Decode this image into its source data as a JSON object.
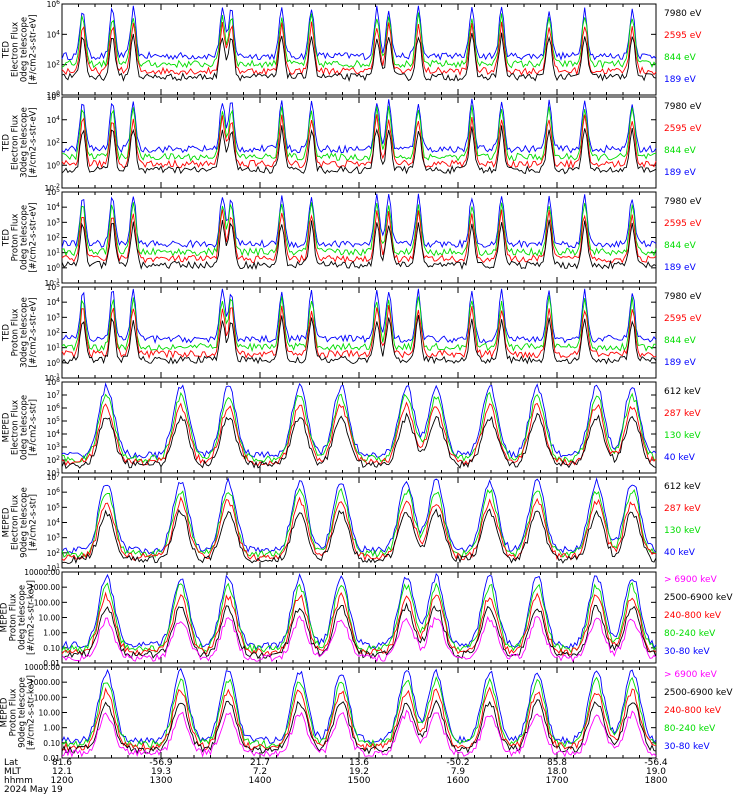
{
  "chart_data": [
    {
      "type": "line",
      "log": true,
      "ylim": [
        1,
        1000000
      ],
      "ylabel": [
        "TED",
        "Electron Flux",
        "0deg telescope",
        "[#/cm2-s-str-eV]"
      ],
      "tick_labels": [
        "10^0",
        "10^2",
        "10^4",
        "10^6"
      ],
      "legend": [
        {
          "label": "7980 eV",
          "color": "#000000"
        },
        {
          "label": "2595 eV",
          "color": "#ff0000"
        },
        {
          "label": "844 eV",
          "color": "#00dd00"
        },
        {
          "label": "189 eV",
          "color": "#0000ff"
        }
      ]
    },
    {
      "type": "line",
      "log": true,
      "ylim": [
        0.01,
        1000000
      ],
      "ylabel": [
        "TED",
        "Electron Flux",
        "30deg telescope",
        "[#/cm2-s-str-eV]"
      ],
      "tick_labels": [
        "10^-2",
        "10^0",
        "10^2",
        "10^4",
        "10^6"
      ],
      "legend": [
        {
          "label": "7980 eV",
          "color": "#000000"
        },
        {
          "label": "2595 eV",
          "color": "#ff0000"
        },
        {
          "label": "844 eV",
          "color": "#00dd00"
        },
        {
          "label": "189 eV",
          "color": "#0000ff"
        }
      ]
    },
    {
      "type": "line",
      "log": true,
      "ylim": [
        0.1,
        100000
      ],
      "ylabel": [
        "TED",
        "Proton Flux",
        "0deg telescope",
        "[#/cm2-s-str-eV]"
      ],
      "tick_labels": [
        "10^-1",
        "10^0",
        "10^1",
        "10^2",
        "10^3",
        "10^4",
        "10^5"
      ],
      "legend": [
        {
          "label": "7980 eV",
          "color": "#000000"
        },
        {
          "label": "2595 eV",
          "color": "#ff0000"
        },
        {
          "label": "844 eV",
          "color": "#00dd00"
        },
        {
          "label": "189 eV",
          "color": "#0000ff"
        }
      ]
    },
    {
      "type": "line",
      "log": true,
      "ylim": [
        0.1,
        100000
      ],
      "ylabel": [
        "TED",
        "Proton Flux",
        "30deg telescope",
        "[#/cm2-s-str-eV]"
      ],
      "tick_labels": [
        "10^-1",
        "10^0",
        "10^1",
        "10^2",
        "10^3",
        "10^4",
        "10^5"
      ],
      "legend": [
        {
          "label": "7980 eV",
          "color": "#000000"
        },
        {
          "label": "2595 eV",
          "color": "#ff0000"
        },
        {
          "label": "844 eV",
          "color": "#00dd00"
        },
        {
          "label": "189 eV",
          "color": "#0000ff"
        }
      ]
    },
    {
      "type": "line",
      "log": true,
      "ylim": [
        10,
        100000000
      ],
      "ylabel": [
        "MEPED",
        "Electron Flux",
        "0deg telescope",
        "[#/cm2-s-str]"
      ],
      "tick_labels": [
        "10^1",
        "10^2",
        "10^3",
        "10^4",
        "10^5",
        "10^6",
        "10^7",
        "10^8"
      ],
      "legend": [
        {
          "label": "612 keV",
          "color": "#000000"
        },
        {
          "label": "287 keV",
          "color": "#ff0000"
        },
        {
          "label": "130 keV",
          "color": "#00dd00"
        },
        {
          "label": "40 keV",
          "color": "#0000ff"
        }
      ]
    },
    {
      "type": "line",
      "log": true,
      "ylim": [
        10,
        10000000
      ],
      "ylabel": [
        "MEPED",
        "Electron Flux",
        "90deg telescope",
        "[#/cm2-s-str]"
      ],
      "tick_labels": [
        "10^1",
        "10^2",
        "10^3",
        "10^4",
        "10^5",
        "10^6",
        "10^7"
      ],
      "legend": [
        {
          "label": "612 keV",
          "color": "#000000"
        },
        {
          "label": "287 keV",
          "color": "#ff0000"
        },
        {
          "label": "130 keV",
          "color": "#00dd00"
        },
        {
          "label": "40 keV",
          "color": "#0000ff"
        }
      ]
    },
    {
      "type": "line",
      "log": true,
      "ylim": [
        0.01,
        10000
      ],
      "ylabel": [
        "MEPED",
        "Proton Flux",
        "0deg telescope",
        "[#/cm2-s-str-keV]"
      ],
      "tick_labels": [
        "0.01",
        "0.10",
        "1.00",
        "10.00",
        "100.00",
        "1000.00",
        "10000.00"
      ],
      "legend": [
        {
          "label": "> 6900 keV",
          "color": "#ff00ff"
        },
        {
          "label": "2500-6900 keV",
          "color": "#000000"
        },
        {
          "label": "240-800 keV",
          "color": "#ff0000"
        },
        {
          "label": "80-240 keV",
          "color": "#00dd00"
        },
        {
          "label": "30-80 keV",
          "color": "#0000ff"
        }
      ]
    },
    {
      "type": "line",
      "log": true,
      "ylim": [
        0.01,
        10000
      ],
      "ylabel": [
        "MEPED",
        "Proton Flux",
        "90deg telescope",
        "[#/cm2-s-str-keV]"
      ],
      "tick_labels": [
        "0.01",
        "0.10",
        "1.00",
        "10.00",
        "100.00",
        "1000.00",
        "10000.00"
      ],
      "legend": [
        {
          "label": "> 6900 keV",
          "color": "#ff00ff"
        },
        {
          "label": "2500-6900 keV",
          "color": "#000000"
        },
        {
          "label": "240-800 keV",
          "color": "#ff0000"
        },
        {
          "label": "80-240 keV",
          "color": "#00dd00"
        },
        {
          "label": "30-80 keV",
          "color": "#0000ff"
        }
      ]
    }
  ],
  "x_axis": {
    "row_labels": [
      "Lat",
      "MLT",
      "hhmm",
      "2024 May 19"
    ],
    "range": [
      1200,
      1800
    ],
    "ticks": [
      {
        "lat": "81.6",
        "mlt": "12.1",
        "hhmm": "1200"
      },
      {
        "lat": "-56.9",
        "mlt": "19.3",
        "hhmm": "1300"
      },
      {
        "lat": "21.7",
        "mlt": "7.2",
        "hhmm": "1400"
      },
      {
        "lat": "13.6",
        "mlt": "19.2",
        "hhmm": "1500"
      },
      {
        "lat": "-50.2",
        "mlt": "7.9",
        "hhmm": "1600"
      },
      {
        "lat": "85.8",
        "mlt": "18.0",
        "hhmm": "1700"
      },
      {
        "lat": "-56.4",
        "mlt": "19.0",
        "hhmm": "1800"
      }
    ]
  }
}
